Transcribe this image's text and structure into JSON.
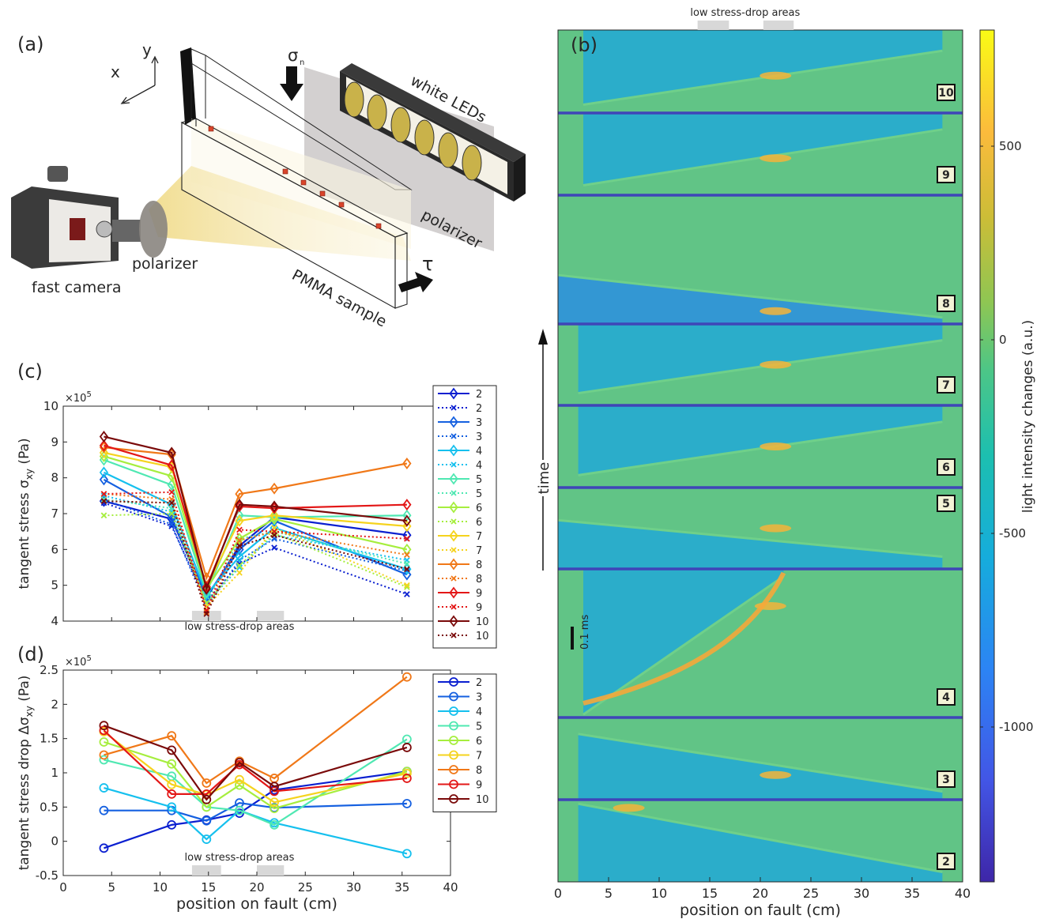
{
  "panel_labels": {
    "a": "(a)",
    "b": "(b)",
    "c": "(c)",
    "d": "(d)"
  },
  "schematic": {
    "labels": {
      "axis_y": "y",
      "axis_x": "x",
      "sigma": "σ",
      "sigma_sub": "n",
      "tau": "τ",
      "white_leds": "white LEDs",
      "polarizer_right": "polarizer",
      "polarizer_left": "polarizer",
      "fast_camera": "fast camera",
      "pmma": "PMMA sample"
    },
    "colors": {
      "led_fill": "#c9b24a",
      "light_cone": "#f3e3a0",
      "plate": "#c8c4c4",
      "sensor": "#d9452b"
    }
  },
  "chart_data": [
    {
      "id": "c",
      "type": "line",
      "title": "",
      "xlabel": "",
      "ylabel": "tangent stress σ",
      "ylabel_sub": "xy",
      "ylabel_unit": " (Pa)",
      "exponent_label": "×10",
      "exponent_power": "5",
      "xlim": [
        0,
        40
      ],
      "ylim": [
        4,
        10
      ],
      "yticks": [
        "4",
        "5",
        "6",
        "7",
        "8",
        "9",
        "10"
      ],
      "x": [
        4.2,
        11.2,
        14.8,
        18.2,
        21.8,
        35.5
      ],
      "shaded_label": "low stress-drop areas",
      "shaded_ranges": [
        [
          13.3,
          16.3
        ],
        [
          20.0,
          22.8
        ]
      ],
      "series": [
        {
          "name": "2",
          "style": "solid",
          "color": "#0a1fd0",
          "values": [
            7.35,
            6.85,
            4.65,
            6.1,
            6.9,
            6.4
          ]
        },
        {
          "name": "2",
          "style": "dotted",
          "color": "#0a1fd0",
          "values": [
            7.3,
            6.65,
            4.55,
            5.6,
            6.05,
            4.75
          ]
        },
        {
          "name": "3",
          "style": "solid",
          "color": "#1560e0",
          "values": [
            7.95,
            6.9,
            4.7,
            6.0,
            6.8,
            5.3
          ]
        },
        {
          "name": "3",
          "style": "dotted",
          "color": "#1560e0",
          "values": [
            7.4,
            6.7,
            4.4,
            5.7,
            6.3,
            5.4
          ]
        },
        {
          "name": "4",
          "style": "solid",
          "color": "#15c0ee",
          "values": [
            8.15,
            7.25,
            4.75,
            5.8,
            6.6,
            5.45
          ]
        },
        {
          "name": "4",
          "style": "dotted",
          "color": "#15c0ee",
          "values": [
            7.5,
            7.05,
            4.5,
            5.5,
            6.4,
            5.7
          ]
        },
        {
          "name": "5",
          "style": "solid",
          "color": "#4fe8b2",
          "values": [
            8.5,
            7.8,
            4.8,
            6.95,
            6.9,
            6.95
          ]
        },
        {
          "name": "5",
          "style": "dotted",
          "color": "#4fe8b2",
          "values": [
            7.4,
            7.15,
            4.5,
            6.3,
            6.5,
            5.6
          ]
        },
        {
          "name": "6",
          "style": "solid",
          "color": "#a6ee3e",
          "values": [
            8.6,
            8.05,
            4.9,
            6.3,
            6.85,
            6.0
          ]
        },
        {
          "name": "6",
          "style": "dotted",
          "color": "#a6ee3e",
          "values": [
            6.95,
            7.0,
            4.5,
            5.55,
            6.45,
            4.95
          ]
        },
        {
          "name": "7",
          "style": "solid",
          "color": "#f5d31e",
          "values": [
            8.7,
            8.3,
            4.95,
            6.8,
            6.95,
            6.65
          ]
        },
        {
          "name": "7",
          "style": "dotted",
          "color": "#f5d31e",
          "values": [
            7.35,
            7.3,
            4.4,
            5.35,
            6.6,
            5.0
          ]
        },
        {
          "name": "8",
          "style": "solid",
          "color": "#f07818",
          "values": [
            8.85,
            8.65,
            5.2,
            7.55,
            7.7,
            8.4
          ]
        },
        {
          "name": "8",
          "style": "dotted",
          "color": "#f07818",
          "values": [
            7.55,
            7.4,
            4.25,
            6.25,
            6.5,
            5.85
          ]
        },
        {
          "name": "9",
          "style": "solid",
          "color": "#e31717",
          "values": [
            8.9,
            8.35,
            4.95,
            7.2,
            7.15,
            7.25
          ]
        },
        {
          "name": "9",
          "style": "dotted",
          "color": "#e31717",
          "values": [
            7.55,
            7.6,
            4.3,
            6.55,
            6.5,
            6.3
          ]
        },
        {
          "name": "10",
          "style": "solid",
          "color": "#7a0a0a",
          "values": [
            9.15,
            8.7,
            4.9,
            7.25,
            7.2,
            6.8
          ]
        },
        {
          "name": "10",
          "style": "dotted",
          "color": "#7a0a0a",
          "values": [
            7.35,
            7.3,
            4.2,
            6.1,
            6.4,
            5.45
          ]
        }
      ]
    },
    {
      "id": "d",
      "type": "line",
      "title": "",
      "xlabel": "position on fault (cm)",
      "ylabel": "tangent stress drop Δσ",
      "ylabel_sub": "xy",
      "ylabel_unit": " (Pa)",
      "exponent_label": "×10",
      "exponent_power": "5",
      "xlim": [
        0,
        40
      ],
      "ylim": [
        -0.5,
        2.5
      ],
      "xticks": [
        "0",
        "5",
        "10",
        "15",
        "20",
        "25",
        "30",
        "35",
        "40"
      ],
      "yticks": [
        "-0.5",
        "0",
        "0.5",
        "1",
        "1.5",
        "2",
        "2.5"
      ],
      "x": [
        4.2,
        11.2,
        14.8,
        18.2,
        21.8,
        35.5
      ],
      "shaded_label": "low stress-drop areas",
      "shaded_ranges": [
        [
          13.3,
          16.3
        ],
        [
          20.0,
          22.8
        ]
      ],
      "series": [
        {
          "name": "2",
          "color": "#0a1fd0",
          "values": [
            -0.1,
            0.24,
            0.31,
            0.41,
            0.75,
            1.02
          ]
        },
        {
          "name": "3",
          "color": "#1560e0",
          "values": [
            0.45,
            0.45,
            0.3,
            0.56,
            0.49,
            0.55
          ]
        },
        {
          "name": "4",
          "color": "#15c0ee",
          "values": [
            0.78,
            0.5,
            0.03,
            0.45,
            0.27,
            -0.18
          ]
        },
        {
          "name": "5",
          "color": "#4fe8b2",
          "values": [
            1.19,
            0.95,
            0.5,
            0.45,
            0.24,
            1.49
          ]
        },
        {
          "name": "6",
          "color": "#a6ee3e",
          "values": [
            1.45,
            1.13,
            0.5,
            0.82,
            0.48,
            1.02
          ]
        },
        {
          "name": "7",
          "color": "#f5d31e",
          "values": [
            1.6,
            0.83,
            0.68,
            0.9,
            0.57,
            0.99
          ]
        },
        {
          "name": "8",
          "color": "#f07818",
          "values": [
            1.26,
            1.54,
            0.85,
            1.17,
            0.92,
            2.4
          ]
        },
        {
          "name": "9",
          "color": "#e31717",
          "values": [
            1.62,
            0.69,
            0.69,
            1.12,
            0.73,
            0.92
          ]
        },
        {
          "name": "10",
          "color": "#7a0a0a",
          "values": [
            1.69,
            1.33,
            0.61,
            1.15,
            0.8,
            1.37
          ]
        }
      ]
    },
    {
      "id": "b",
      "type": "heatmap",
      "title": "",
      "xlabel": "position on fault (cm)",
      "ylabel": "time",
      "scalebar_label": "0.1 ms",
      "top_label": "low stress-drop areas",
      "shaded_ranges": [
        [
          13.8,
          16.9
        ],
        [
          20.3,
          23.3
        ]
      ],
      "xlim": [
        0,
        40
      ],
      "xticks": [
        "0",
        "5",
        "10",
        "15",
        "20",
        "25",
        "30",
        "35",
        "40"
      ],
      "colorbar": {
        "label": "light intensity changes (a.u.)",
        "range": [
          -1400,
          800
        ],
        "ticks": [
          "500",
          "0",
          "-500",
          "-1000"
        ],
        "tick_values": [
          500,
          0,
          -500,
          -1000
        ]
      },
      "events": [
        {
          "label": "10",
          "front_start": [
            2.5,
            0.9
          ],
          "front_end": [
            38,
            0.25
          ],
          "hot": [
            21.5,
            0.55
          ]
        },
        {
          "label": "9",
          "front_start": [
            2.5,
            0.88
          ],
          "front_end": [
            38,
            0.2
          ],
          "hot": [
            21.5,
            0.55
          ]
        },
        {
          "label": "8",
          "front_start": [
            0,
            0.62
          ],
          "front_end": [
            38,
            0.95
          ],
          "hot": [
            21.5,
            0.9
          ]
        },
        {
          "label": "7",
          "front_start": [
            2,
            0.85
          ],
          "front_end": [
            38,
            0.2
          ],
          "hot": [
            21.5,
            0.5
          ]
        },
        {
          "label": "6",
          "front_start": [
            2,
            0.85
          ],
          "front_end": [
            38,
            0.2
          ],
          "hot": [
            21.5,
            0.5
          ]
        },
        {
          "label": "5",
          "front_start": [
            0,
            0.4
          ],
          "front_end": [
            38,
            0.85
          ],
          "hot": [
            21.5,
            0.5
          ]
        },
        {
          "label": "4",
          "front_start": [
            2.5,
            0.98
          ],
          "front_end": [
            22.3,
            0.05
          ],
          "hot": [
            21.0,
            0.25
          ]
        },
        {
          "label": "3",
          "front_start": [
            2,
            0.2
          ],
          "front_end": [
            38,
            0.9
          ],
          "hot": [
            21.5,
            0.7
          ]
        },
        {
          "label": "2",
          "front_start": [
            2,
            0.05
          ],
          "front_end": [
            38,
            0.88
          ],
          "hot": [
            7.0,
            0.1
          ]
        }
      ]
    }
  ]
}
